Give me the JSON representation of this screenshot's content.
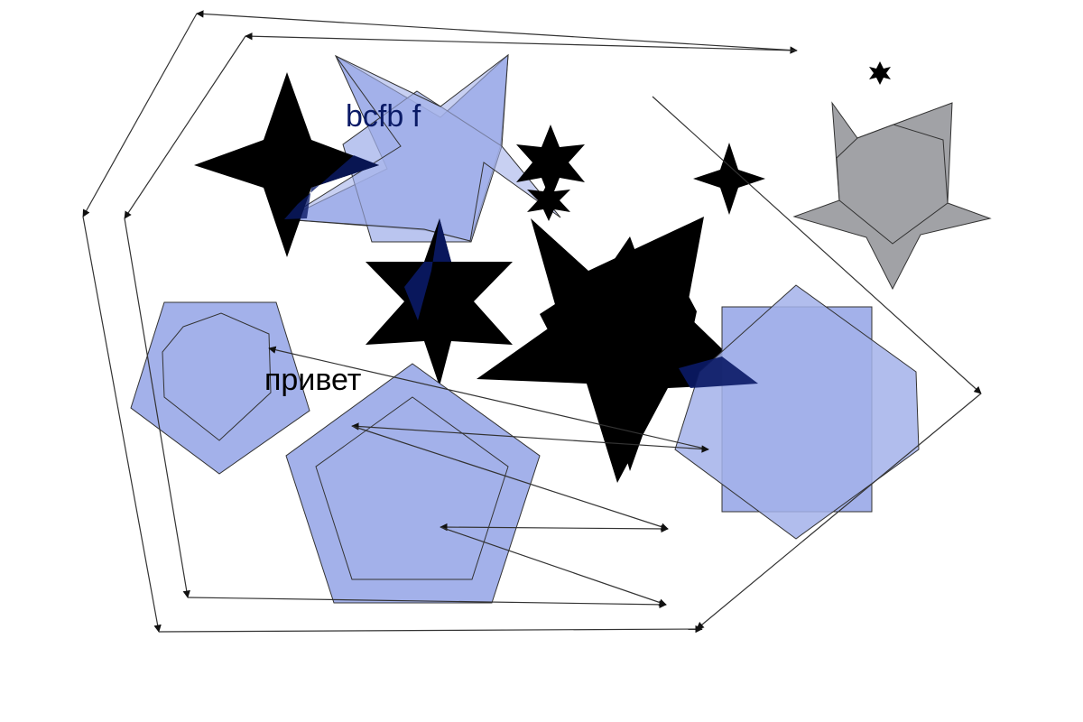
{
  "labels": {
    "top": "bcfb  f",
    "middle": "привет"
  },
  "colors": {
    "blue_fill": "#a3b1ea",
    "dark_fill": "#000000",
    "gray_fill": "#a1a2a6",
    "label_blue": "#0a1a66",
    "label_black": "#000000",
    "line": "#333333"
  }
}
